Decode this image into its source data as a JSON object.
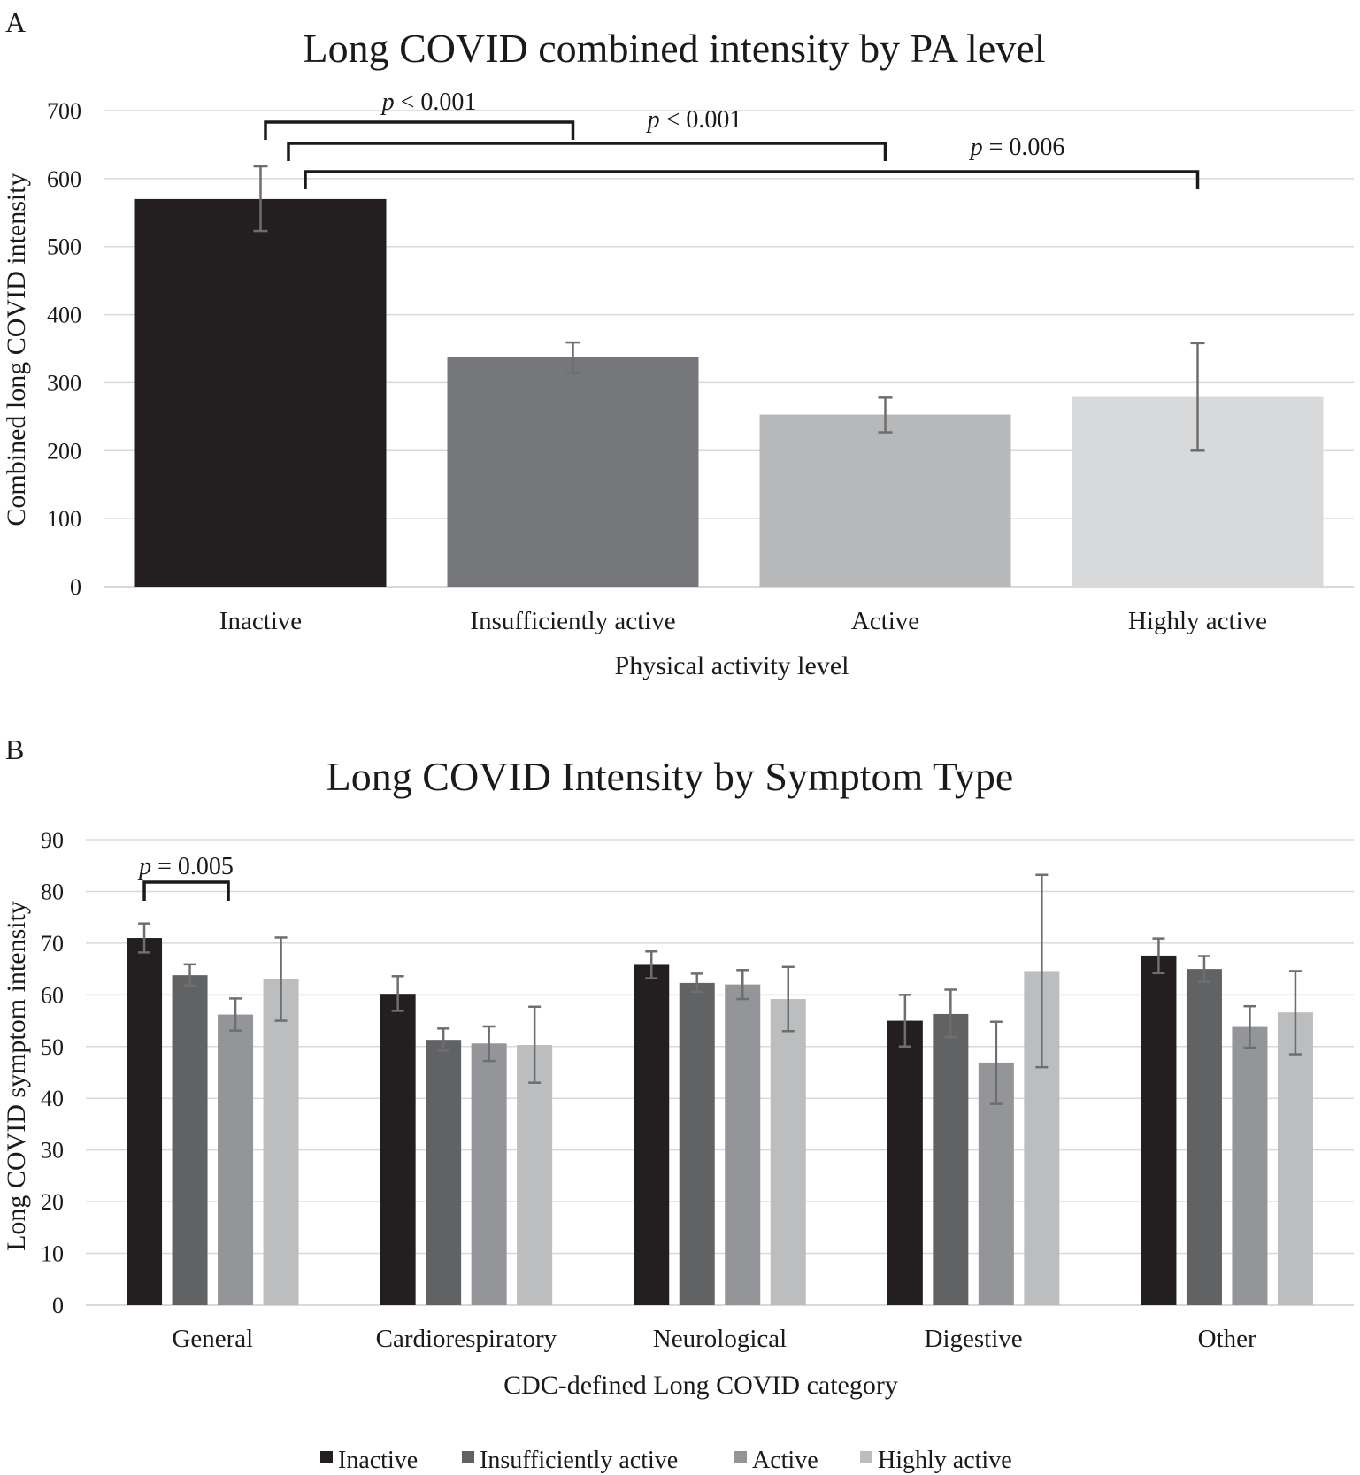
{
  "chart_data": [
    {
      "panel": "A",
      "type": "bar",
      "title": "Long COVID combined intensity by PA level",
      "xlabel": "Physical activity level",
      "ylabel": "Combined long COVID intensity",
      "ylim": [
        0,
        700
      ],
      "yticks": [
        "0",
        "100",
        "200",
        "300",
        "400",
        "500",
        "600",
        "700"
      ],
      "grid": true,
      "categories": [
        "Inactive",
        "Insufficiently active",
        "Active",
        "Highly active"
      ],
      "values": [
        570,
        337,
        253,
        279
      ],
      "error_low": [
        523,
        314,
        227,
        200
      ],
      "error_high": [
        618,
        359,
        278,
        358
      ],
      "colors": [
        "#231f20",
        "#76777a",
        "#b7b8ba",
        "#d8d9da"
      ],
      "annotations": [
        {
          "from": "Inactive",
          "to": "Insufficiently active",
          "p_symbol": "p",
          "p_text": " < 0.001"
        },
        {
          "from": "Inactive",
          "to": "Active",
          "p_symbol": "p",
          "p_text": " < 0.001"
        },
        {
          "from": "Inactive",
          "to": "Highly active",
          "p_symbol": "p",
          "p_text": " = 0.006"
        }
      ]
    },
    {
      "panel": "B",
      "type": "bar",
      "title": "Long COVID Intensity by Symptom Type",
      "xlabel": "CDC-defined Long COVID category",
      "ylabel": "Long COVID symptom intensity",
      "ylim": [
        0,
        90
      ],
      "yticks": [
        "0",
        "10",
        "20",
        "30",
        "40",
        "50",
        "60",
        "70",
        "80",
        "90"
      ],
      "grid": true,
      "legend_position": "bottom",
      "categories": [
        "General",
        "Cardiorespiratory",
        "Neurological",
        "Digestive",
        "Other"
      ],
      "series": [
        {
          "name": "Inactive",
          "color": "#231f20",
          "values": [
            71,
            60.2,
            65.8,
            55,
            67.6
          ],
          "error_low": [
            68.2,
            56.9,
            63.2,
            50,
            64.2
          ],
          "error_high": [
            73.8,
            63.6,
            68.4,
            60,
            70.9
          ]
        },
        {
          "name": "Insufficiently active",
          "color": "#616264",
          "values": [
            63.8,
            51.3,
            62.3,
            56.3,
            65
          ],
          "error_low": [
            61.8,
            49.2,
            60.6,
            51.8,
            62.5
          ],
          "error_high": [
            65.9,
            53.5,
            64.1,
            61,
            67.5
          ]
        },
        {
          "name": "Active",
          "color": "#949598",
          "values": [
            56.2,
            50.6,
            62,
            46.9,
            53.8
          ],
          "error_low": [
            53.1,
            47.2,
            59.2,
            38.9,
            49.8
          ],
          "error_high": [
            59.3,
            53.9,
            64.8,
            54.8,
            57.8
          ]
        },
        {
          "name": "Highly active",
          "color": "#bcbdbf",
          "values": [
            63.1,
            50.3,
            59.2,
            64.6,
            56.6
          ],
          "error_low": [
            55,
            43,
            53,
            46,
            48.5
          ],
          "error_high": [
            71.1,
            57.7,
            65.4,
            83.2,
            64.6
          ]
        }
      ],
      "annotations": [
        {
          "category": "General",
          "from": "Inactive",
          "to": "Active",
          "p_symbol": "p",
          "p_text": " = 0.005"
        }
      ]
    }
  ]
}
